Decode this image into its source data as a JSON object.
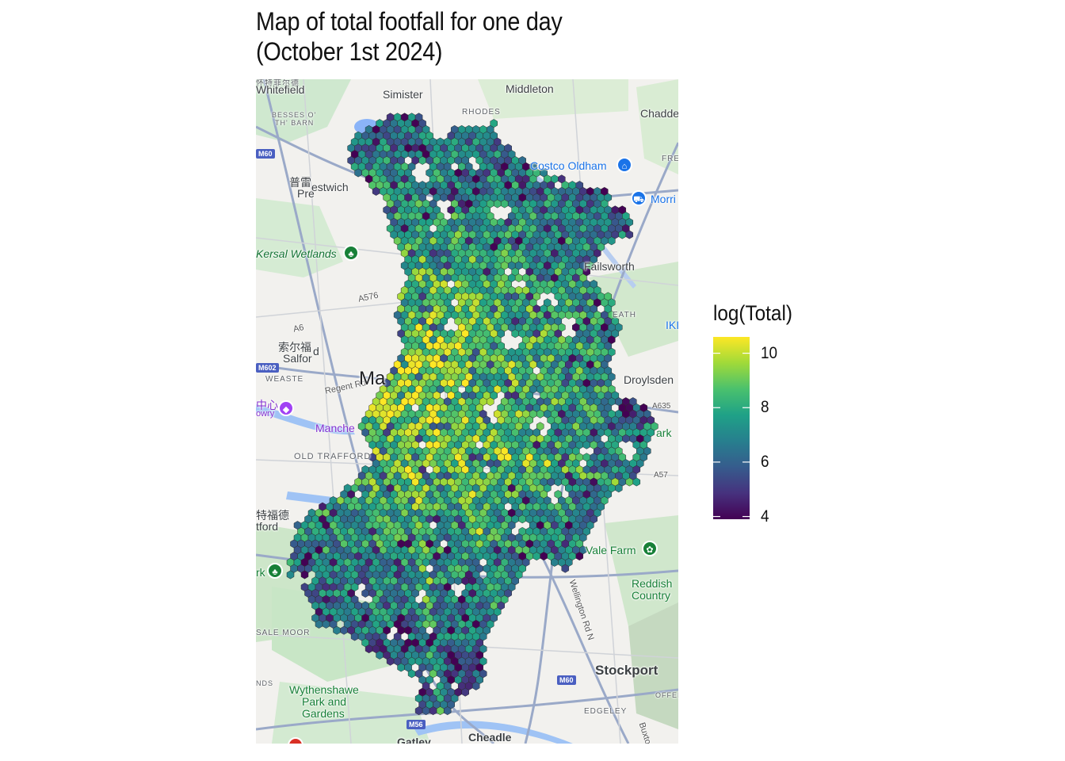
{
  "title_lines": [
    "Map of total footfall for one day",
    "(October 1st 2024)"
  ],
  "legend": {
    "title": "log(Total)",
    "min": 3.9,
    "max": 10.6,
    "ticks": [
      4,
      6,
      8,
      10
    ],
    "tick_labels": [
      "4",
      "6",
      "8",
      "10"
    ],
    "colormap": "viridis",
    "stops": [
      "#440154",
      "#46327e",
      "#365c8d",
      "#277f8e",
      "#1fa187",
      "#4ac16d",
      "#a0da39",
      "#fde725"
    ]
  },
  "map_labels": {
    "whitefield": "Whitefield",
    "simister": "Simister",
    "middleton": "Middleton",
    "chadderton": "Chadde",
    "rhodes": "RHODES",
    "besses": "BESSES O'",
    "barn": "TH' BARN",
    "costco": "Costco Oldham",
    "morrisons": "Morri",
    "prestwich_cn": "普雷",
    "prestwich": "estwich",
    "prestwich2": "Pre",
    "kersal": "Kersal Wetlands",
    "failsworth": "Failsworth",
    "a576": "A576",
    "a6": "A6",
    "salford_cn": "索尔福",
    "salford": "Salfor",
    "salford_d": "d",
    "heath": "EATH",
    "ik": "IKI",
    "weaste": "WEASTE",
    "regent": "Regent Rd",
    "manchester": "Ma",
    "droylsden": "Droylsden",
    "a635": "A635",
    "lowry_cn": "中心",
    "lowry": "owry",
    "manch": "Manche",
    "park": "ark",
    "old_trafford": "OLD TRAFFORD",
    "a57": "A57",
    "stretford_cn": "特福德",
    "stretford": "tford",
    "vale_farm": "Vale Farm",
    "rk": "rk",
    "reddish1": "Reddish",
    "reddish2": "Country",
    "wellington": "Wellington Rd N",
    "sale_moor": "SALE MOOR",
    "nds": "NDS",
    "wythenshawe1": "Wythenshawe",
    "wythenshawe2": "Park and",
    "wythenshawe3": "Gardens",
    "stockport": "Stockport",
    "edgeley": "EDGELEY",
    "offer": "OFFER",
    "buxton": "Buxto",
    "gatley": "Gatley",
    "cheadle": "Cheadle",
    "top_cn": "怀特菲尔德",
    "fre": "FRE"
  },
  "road_shields": {
    "m60_top": "M60",
    "m602": "M602",
    "m60_bottom": "M60",
    "m56": "M56"
  }
}
